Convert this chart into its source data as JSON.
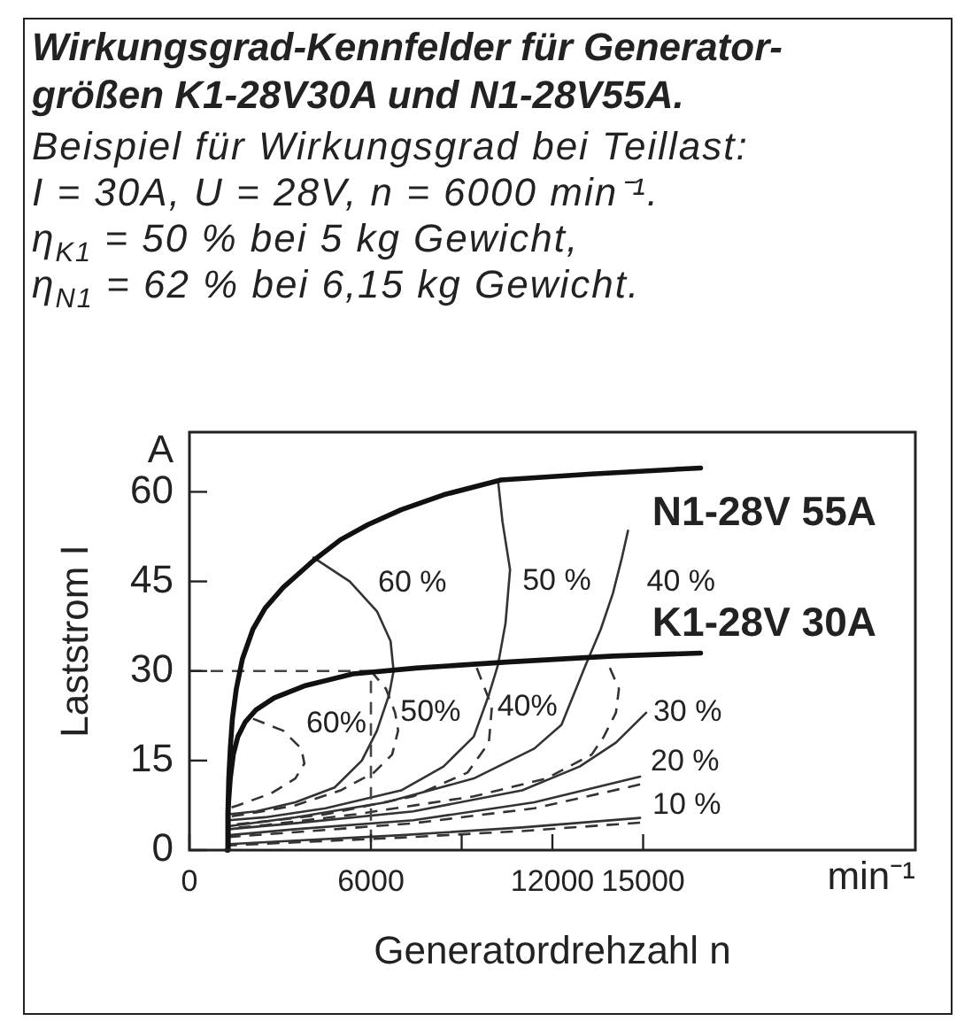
{
  "chart_data": {
    "type": "line",
    "title": "Wirkungsgrad-Kennfelder für Generator-größen K1-28V30A und N1-28V55A.",
    "subtitle": "Beispiel für Wirkungsgrad bei Teillast:\nI = 30A, U = 28V, n = 6000 min⁻¹.\nη$_{K1}$ = 50 % bei 5 kg Gewicht,\nη$_{N1}$ = 62 % bei 6,15 kg Gewicht.",
    "xlabel": "Generatordrehzahl n",
    "ylabel": "Laststrom I",
    "xlim": [
      0,
      24000
    ],
    "xticks": [
      0,
      6000,
      {
        "value": 9000,
        "label": null
      },
      12000,
      15000
    ],
    "ylim": [
      0,
      70
    ],
    "yticks": [
      0,
      15,
      30,
      45,
      60
    ],
    "annotations": [
      "A",
      "min⁻¹"
    ],
    "series": [
      {
        "name": "N1-28V 55A",
        "color": "#111111",
        "x": [
          1250,
          1270,
          1300,
          1350,
          1420,
          1550,
          1750,
          2100,
          2500,
          3100,
          4100,
          5000,
          5900,
          7000,
          8400,
          10300,
          13300,
          16900
        ],
        "values": [
          0,
          6,
          12,
          17,
          22,
          27,
          32,
          37,
          40.5,
          44,
          48.5,
          52,
          54.5,
          57,
          59.5,
          62,
          63,
          64
        ]
      },
      {
        "name": "K1-28V 30A",
        "color": "#111111",
        "x": [
          1250,
          1280,
          1350,
          1450,
          1600,
          1850,
          2200,
          2800,
          3800,
          5400,
          7500,
          10500,
          14000,
          16900
        ],
        "values": [
          0,
          7,
          12,
          16,
          19,
          21.5,
          23.5,
          25.5,
          27.5,
          29.5,
          30.5,
          31.5,
          32.5,
          33
        ]
      },
      {
        "color": "#444444",
        "line_style": "dashed",
        "x": [
          0,
          6000,
          6000
        ],
        "values": [
          30,
          30,
          0
        ]
      },
      {
        "name": "60 %",
        "color": "#333333",
        "x": [
          4100,
          5300,
          6200,
          6650,
          6750,
          6600,
          6200,
          5700,
          4800,
          3500,
          2200,
          1300
        ],
        "values": [
          49,
          45,
          40,
          35,
          30,
          26,
          20,
          15,
          10.5,
          8,
          6.5,
          6
        ]
      },
      {
        "name": "50 %",
        "color": "#333333",
        "x": [
          10200,
          10350,
          10600,
          10450,
          10200,
          9900,
          9400,
          8400,
          7000,
          4500,
          2500,
          1300
        ],
        "values": [
          62,
          55,
          47,
          38,
          31,
          26,
          19,
          14,
          10,
          7,
          5.5,
          5
        ]
      },
      {
        "name": "40 %",
        "color": "#333333",
        "x": [
          14500,
          14300,
          14000,
          13600,
          13100,
          12700,
          12300,
          11400,
          9400,
          6500,
          3500,
          1300
        ],
        "values": [
          53.5,
          49,
          43,
          37,
          31,
          26,
          21,
          17,
          12,
          8,
          5.5,
          4
        ]
      },
      {
        "name": "30 %",
        "color": "#333333",
        "x": [
          15100,
          14100,
          12900,
          11000,
          7400,
          3500,
          1300
        ],
        "values": [
          23,
          18,
          14,
          10,
          6.5,
          4.5,
          3.5
        ]
      },
      {
        "name": "20 %",
        "color": "#333333",
        "x": [
          14900,
          11400,
          7400,
          3500,
          1300
        ],
        "values": [
          12.3,
          8,
          5,
          3.5,
          2.5
        ]
      },
      {
        "name": "10 %",
        "color": "#333333",
        "x": [
          14900,
          11000,
          7000,
          3500,
          1300
        ],
        "values": [
          5.4,
          3.8,
          2.5,
          1.6,
          1
        ]
      },
      {
        "name": "60%",
        "color": "#333333",
        "line_style": "dashed",
        "x": [
          2100,
          3100,
          3700,
          3800,
          3500,
          2700,
          1600,
          1300
        ],
        "values": [
          22,
          20,
          17,
          14.5,
          12,
          9.5,
          7.5,
          7
        ]
      },
      {
        "name": "50%",
        "color": "#333333",
        "line_style": "dashed",
        "x": [
          6000,
          6500,
          6800,
          6900,
          6700,
          6100,
          5000,
          3500,
          2200,
          1300
        ],
        "values": [
          30,
          27,
          23,
          20,
          16,
          13,
          10,
          7.5,
          6.3,
          5.6
        ]
      },
      {
        "name": "40%",
        "color": "#333333",
        "line_style": "dashed",
        "x": [
          9500,
          10000,
          9900,
          9200,
          7400,
          4500,
          2500,
          1300
        ],
        "values": [
          30.5,
          24,
          18,
          13,
          9,
          6,
          4.8,
          4.2
        ]
      },
      {
        "color": "#333333",
        "line_style": "dashed",
        "x": [
          13900,
          14200,
          14100,
          13700,
          13300,
          11800,
          9400,
          5500,
          2500,
          1300
        ],
        "values": [
          30.5,
          27,
          23,
          19,
          16,
          12,
          9,
          6,
          4.2,
          3.6
        ]
      },
      {
        "color": "#333333",
        "line_style": "dashed",
        "x": [
          14900,
          11400,
          7400,
          3500,
          1300
        ],
        "values": [
          11,
          7,
          4.5,
          3,
          2.2
        ]
      },
      {
        "color": "#333333",
        "line_style": "dashed",
        "x": [
          14900,
          11000,
          7000,
          3500,
          1300
        ],
        "values": [
          4.6,
          3.2,
          2.1,
          1.3,
          0.8
        ]
      }
    ]
  }
}
